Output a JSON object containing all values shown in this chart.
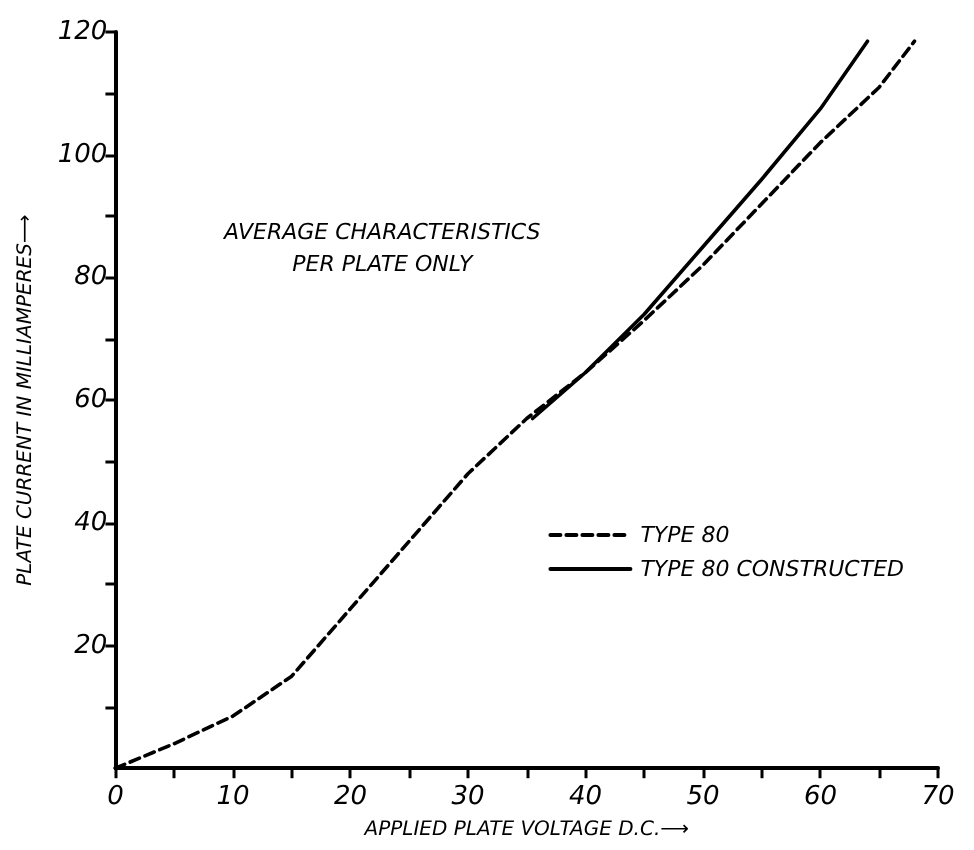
{
  "chart_data": {
    "type": "line",
    "xlabel": "APPLIED PLATE VOLTAGE D.C.⟶",
    "ylabel": "PLATE CURRENT IN MILLIAMPERES⟶",
    "annotations": [
      "AVERAGE CHARACTERISTICS\nPER PLATE ONLY"
    ],
    "xlim": [
      0,
      70
    ],
    "ylim": [
      0,
      120
    ],
    "xticks": [
      0,
      {
        "value": 5,
        "label": null
      },
      10,
      {
        "value": 15,
        "label": null
      },
      20,
      {
        "value": 25,
        "label": null
      },
      30,
      {
        "value": 35,
        "label": null
      },
      40,
      {
        "value": 45,
        "label": null
      },
      50,
      {
        "value": 55,
        "label": null
      },
      60,
      {
        "value": 65,
        "label": null
      },
      70
    ],
    "yticks": [
      {
        "value": 10,
        "label": null
      },
      20,
      {
        "value": 30,
        "label": null
      },
      40,
      {
        "value": 50,
        "label": null
      },
      60,
      {
        "value": 70,
        "label": null
      },
      80,
      {
        "value": 90,
        "label": null
      },
      100,
      {
        "value": 110,
        "label": null
      },
      120
    ],
    "series": [
      {
        "name": "TYPE 80",
        "color": "#000000",
        "line_style": "dashed",
        "x": [
          0,
          5,
          10,
          15,
          20,
          25,
          30,
          35,
          40,
          45,
          50,
          55,
          60,
          65,
          68
        ],
        "values": [
          0,
          4,
          8.5,
          15,
          26,
          37,
          48,
          57,
          64.5,
          73,
          82,
          92,
          102,
          111,
          118.5
        ]
      },
      {
        "name": "TYPE 80 CONSTRUCTED",
        "color": "#000000",
        "line_style": "solid",
        "x": [
          35.5,
          40,
          45,
          50,
          55,
          60,
          64
        ],
        "values": [
          57,
          64.5,
          74,
          85,
          96,
          107.5,
          118.5
        ]
      }
    ],
    "grid": false,
    "legend": "bottom right",
    "marker": "none"
  }
}
